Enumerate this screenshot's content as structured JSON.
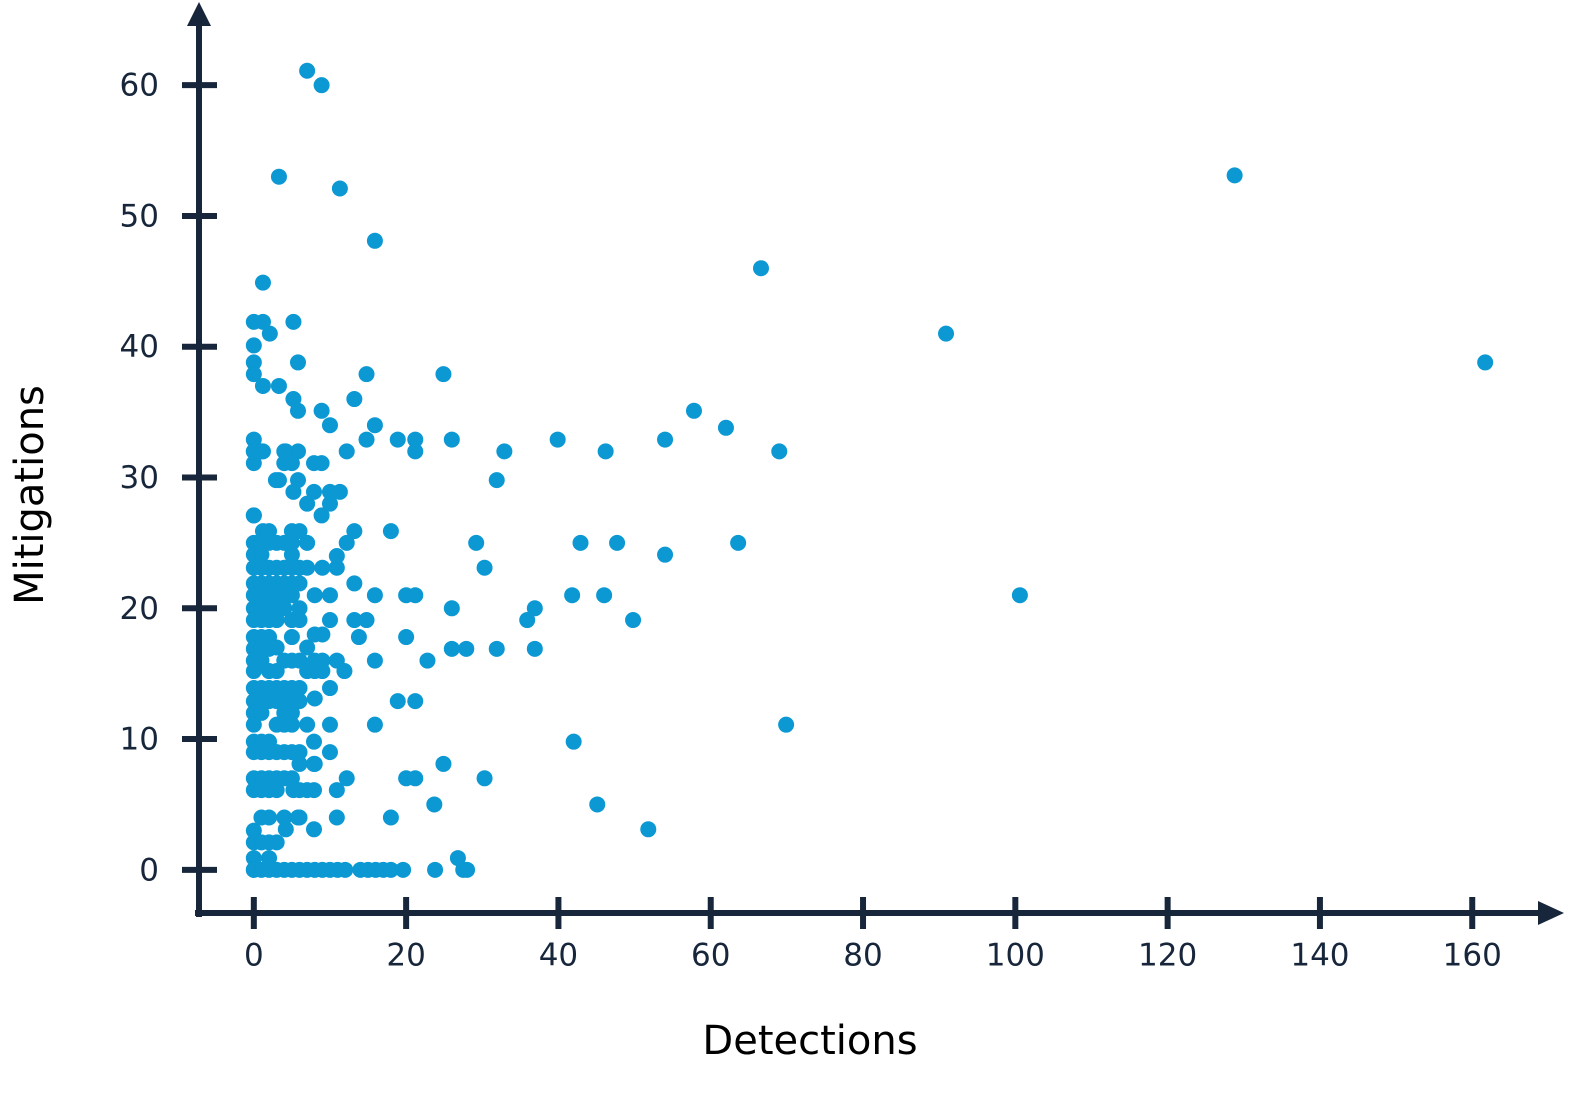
{
  "chart_data": {
    "type": "scatter",
    "x_label": "Detections",
    "y_label": "Mitigations",
    "color": "#0b98d3",
    "axis_color": "#17263a",
    "xlim": [
      -7.2,
      171
    ],
    "ylim": [
      -3.3,
      65.9
    ],
    "xticks": [
      0,
      20,
      40,
      60,
      80,
      100,
      120,
      140,
      160
    ],
    "yticks": [
      0,
      10,
      20,
      30,
      40,
      50,
      60
    ],
    "x": [
      7,
      8.9,
      3.3,
      11.3,
      15.9,
      1.2,
      128.8,
      66.6,
      90.9,
      161.7,
      100.6,
      69.9,
      57.8,
      62,
      69,
      54,
      46.2,
      39.9,
      32.9,
      31.9,
      24.9,
      26,
      21.2,
      21.2,
      18.9,
      14.8,
      15.9,
      14.8,
      13.2,
      10,
      8.9,
      12.2,
      63.6,
      54,
      47.7,
      42.9,
      29.2,
      30.3,
      36.9,
      35.9,
      49.8,
      46,
      41.8,
      26,
      31.9,
      36.9,
      27.9,
      26,
      22.8,
      20,
      21.2,
      18,
      15.9,
      13.2,
      12.2,
      13.2,
      14.8,
      13.2,
      13.8,
      15.9,
      20,
      18.9,
      21.2,
      15.9,
      11.9,
      10.9,
      10.9,
      10.9,
      10,
      10,
      10,
      10,
      10,
      10,
      11.3,
      10,
      8.9,
      8.9,
      7.9,
      7.9,
      7,
      5.8,
      5.2,
      2.9,
      5.8,
      4.2,
      5.8,
      5.2,
      5.8,
      3.3,
      1.2,
      5.2,
      2.1,
      1.2,
      0,
      0,
      0,
      0,
      0,
      0,
      0,
      0,
      1.2,
      3.3,
      0,
      0,
      1.2,
      0,
      0,
      0,
      0,
      0,
      0,
      0,
      0,
      0,
      0,
      0,
      0,
      0,
      0,
      0,
      0,
      0,
      0,
      0,
      0,
      0,
      0,
      0,
      0,
      1,
      2,
      3,
      4,
      5,
      6,
      7,
      8,
      9,
      10,
      11,
      12,
      14,
      15,
      16,
      17,
      18,
      19.6,
      23.8,
      27.5,
      28,
      26.8,
      45.1,
      51.8,
      42,
      30.3,
      24.9,
      23.7,
      20,
      21.2,
      18,
      12.2,
      10.9,
      10.9,
      7.9,
      7.9,
      7.9,
      7.9,
      5.8,
      4.2,
      5.2,
      1,
      1,
      1,
      1,
      1,
      1,
      1,
      1,
      1,
      1,
      1,
      1,
      1,
      1,
      1,
      1,
      1,
      1,
      1,
      1,
      2,
      2,
      2,
      2,
      2,
      2,
      2,
      2,
      2,
      2,
      2,
      2,
      2,
      2,
      2,
      2,
      2,
      2,
      2,
      3,
      3,
      3,
      3,
      3,
      3,
      3,
      3,
      3,
      3,
      3,
      3,
      3,
      3,
      3,
      4,
      4,
      4,
      4,
      4,
      4,
      4,
      4,
      4,
      4,
      4,
      4,
      4,
      4,
      4,
      5,
      5,
      5,
      5,
      5,
      5,
      5,
      5,
      5,
      5,
      5,
      5,
      5,
      5,
      5,
      5,
      6,
      6,
      6,
      6,
      6,
      6,
      6,
      6,
      6,
      6,
      6,
      6,
      7,
      7,
      7,
      7,
      7,
      7,
      8,
      8,
      8,
      8,
      8,
      8,
      9,
      9,
      9,
      9
    ],
    "values": [
      61.1,
      60,
      53,
      52.1,
      48.1,
      44.9,
      53.1,
      46,
      41,
      38.8,
      21,
      11.1,
      35.1,
      33.8,
      32,
      32.9,
      32,
      32.9,
      32,
      29.8,
      37.9,
      32.9,
      32.9,
      32,
      32.9,
      32.9,
      34,
      37.9,
      36,
      34,
      35.1,
      32,
      25,
      24.1,
      25,
      25,
      25,
      23.1,
      20,
      19.1,
      19.1,
      21,
      21,
      20,
      16.9,
      16.9,
      16.9,
      16.9,
      16,
      21,
      21,
      25.9,
      21,
      21.9,
      25,
      25.9,
      19.1,
      19.1,
      17.8,
      16,
      17.8,
      12.9,
      12.9,
      11.1,
      15.2,
      16,
      23.1,
      24,
      21,
      19.1,
      13.9,
      11.1,
      9,
      28.9,
      28.9,
      28,
      27.1,
      31.1,
      31.1,
      28.9,
      28,
      29.8,
      28.9,
      29.8,
      32,
      32,
      35.1,
      36,
      38.8,
      37,
      37,
      41.9,
      41,
      41.9,
      41.9,
      40.1,
      38.8,
      37.9,
      32.9,
      32,
      31.1,
      32,
      32,
      29.8,
      27.1,
      27.1,
      25.9,
      25,
      24.1,
      23.1,
      21.9,
      21,
      20,
      19.1,
      17.8,
      16.9,
      16,
      15.2,
      13.9,
      12.9,
      12,
      11.1,
      9.8,
      9,
      7,
      6.1,
      3,
      2.1,
      0.9,
      0,
      0,
      0,
      0,
      0,
      0,
      0,
      0,
      0,
      0,
      0,
      0,
      0,
      0,
      0,
      0,
      0,
      0,
      0,
      0,
      0,
      0,
      0,
      0.9,
      5,
      3.1,
      9.8,
      7,
      8.1,
      5,
      7,
      7,
      4,
      7,
      6.1,
      4,
      3.1,
      6.1,
      8.1,
      9.8,
      4,
      3.1,
      6.1,
      25,
      24.1,
      23.1,
      21.9,
      21,
      20,
      19.1,
      17.8,
      16.9,
      16,
      13.9,
      12.9,
      12,
      9.8,
      9,
      7,
      6.1,
      4,
      2.1,
      32,
      25.9,
      25,
      23.1,
      21.9,
      21,
      20,
      19.1,
      17.8,
      16.9,
      15.2,
      13.9,
      12.9,
      9.8,
      9,
      7,
      6.1,
      4,
      2.1,
      0.9,
      25,
      23.1,
      21.9,
      21,
      20,
      19.1,
      17,
      15.2,
      13.9,
      12.9,
      11.1,
      9,
      7,
      6.1,
      2.1,
      25,
      23.1,
      21.9,
      21,
      20,
      16,
      13.9,
      12.9,
      12,
      11.1,
      9,
      7,
      4,
      31.1,
      32,
      25.9,
      24.1,
      23.1,
      21.9,
      21,
      19.1,
      17.8,
      16,
      13.9,
      12.9,
      12,
      11.1,
      9,
      7,
      25,
      31.1,
      25.9,
      23.1,
      21.9,
      20,
      19.1,
      16,
      13.9,
      12.9,
      9,
      8.1,
      6.1,
      4,
      25,
      23.1,
      17,
      15.2,
      11.1,
      6.1,
      21,
      18,
      16,
      15.2,
      13.1,
      8.1,
      23.1,
      18,
      16,
      15.2
    ]
  }
}
